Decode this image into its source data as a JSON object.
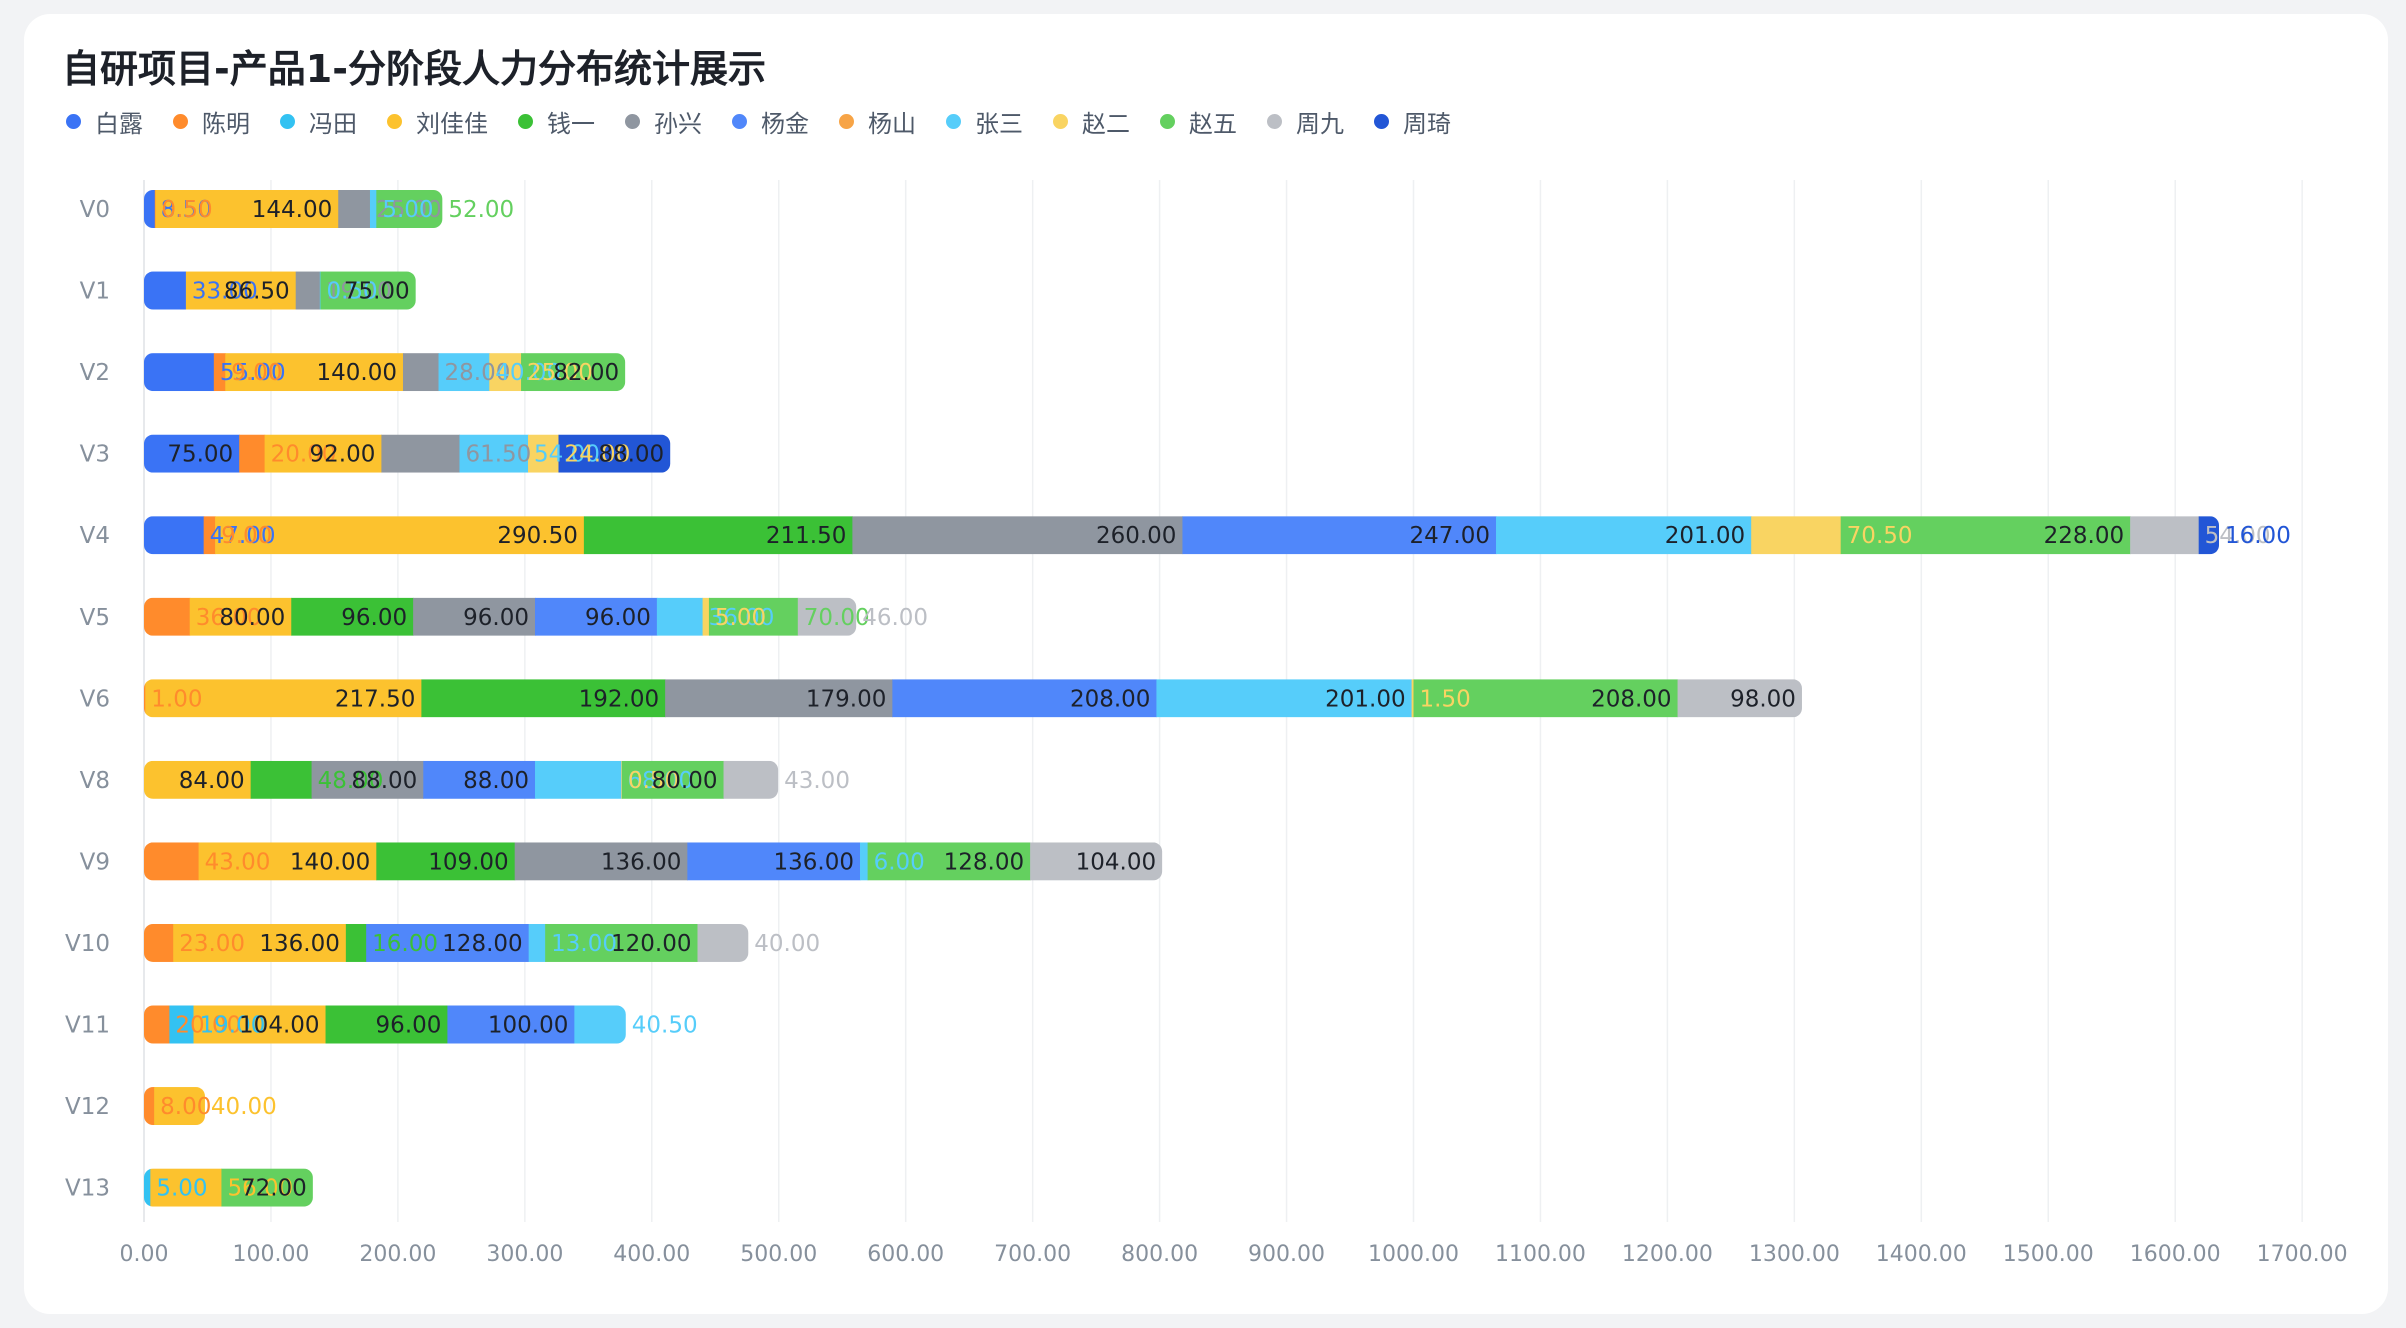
{
  "chart_data": {
    "type": "bar",
    "orientation": "horizontal",
    "stacked": true,
    "title": "自研项目-产品1-分阶段人力分布统计展示",
    "categories": [
      "V0",
      "V1",
      "V2",
      "V3",
      "V4",
      "V5",
      "V6",
      "V8",
      "V9",
      "V10",
      "V11",
      "V12",
      "V13"
    ],
    "xlim": [
      0,
      1700
    ],
    "xticks": [
      "0.00",
      "100.00",
      "200.00",
      "300.00",
      "400.00",
      "500.00",
      "600.00",
      "700.00",
      "800.00",
      "900.00",
      "1000.00",
      "1100.00",
      "1200.00",
      "1300.00",
      "1400.00",
      "1500.00",
      "1600.00",
      "1700.00"
    ],
    "grid": true,
    "legend_position": "top-left",
    "series": [
      {
        "name": "白露",
        "color": "#3a73f5",
        "values": [
          8.5,
          33,
          55,
          75,
          47,
          0,
          0,
          0,
          0,
          0,
          0,
          0,
          0
        ],
        "labels": [
          "8.50",
          "33.00",
          "55.00",
          "75.00",
          "47.00",
          "",
          "",
          "",
          "",
          "",
          "",
          "",
          ""
        ]
      },
      {
        "name": "陈明",
        "color": "#ff8b2c",
        "values": [
          0.5,
          0,
          9,
          20,
          9,
          36,
          1,
          0,
          43,
          23,
          20,
          8,
          0
        ],
        "labels": [
          "0.50",
          "",
          "9.00",
          "20.00",
          "9.00",
          "36.00",
          "1.00",
          "",
          "43.00",
          "23.00",
          "20.00",
          "8.00",
          ""
        ]
      },
      {
        "name": "冯田",
        "color": "#33c2f2",
        "values": [
          0,
          0,
          0,
          0,
          0,
          0,
          0,
          0,
          0,
          0,
          19,
          0,
          5
        ],
        "labels": [
          "",
          "",
          "",
          "",
          "",
          "",
          "",
          "",
          "",
          "",
          "19.00",
          "",
          "5.00"
        ]
      },
      {
        "name": "刘佳佳",
        "color": "#fcc22e",
        "values": [
          144,
          86.5,
          140,
          92,
          290.5,
          80,
          217.5,
          84,
          140,
          136,
          104,
          40,
          56
        ],
        "labels": [
          "144.00",
          "86.50",
          "140.00",
          "92.00",
          "290.50",
          "80.00",
          "217.50",
          "84.00",
          "140.00",
          "136.00",
          "104.00",
          "40.00",
          "56.00"
        ]
      },
      {
        "name": "钱一",
        "color": "#3bc136",
        "values": [
          0,
          0,
          0,
          0,
          211.5,
          96,
          192,
          48,
          109,
          16,
          96,
          0,
          0
        ],
        "labels": [
          "",
          "",
          "",
          "",
          "211.50",
          "96.00",
          "192.00",
          "48.00",
          "109.00",
          "16.00",
          "96.00",
          "",
          ""
        ]
      },
      {
        "name": "孙兴",
        "color": "#8f96a0",
        "values": [
          25,
          19,
          28,
          61.5,
          260,
          96,
          179,
          88,
          136,
          0,
          0,
          0,
          0
        ],
        "labels": [
          "25.00",
          "19.00",
          "28.00",
          "61.50",
          "260.00",
          "96.00",
          "179.00",
          "88.00",
          "136.00",
          "",
          "",
          "",
          ""
        ]
      },
      {
        "name": "杨金",
        "color": "#5087fa",
        "values": [
          0,
          0,
          0,
          0,
          247,
          96,
          208,
          88,
          136,
          128,
          100,
          0,
          0
        ],
        "labels": [
          "",
          "",
          "",
          "",
          "247.00",
          "96.00",
          "208.00",
          "88.00",
          "136.00",
          "128.00",
          "100.00",
          "",
          ""
        ]
      },
      {
        "name": "杨山",
        "color": "#f7a446",
        "values": [
          0,
          0,
          0,
          0,
          0,
          0,
          0,
          0,
          0,
          0,
          0,
          0,
          0
        ],
        "labels": [
          "",
          "",
          "",
          "",
          "",
          "",
          "",
          "",
          "",
          "",
          "",
          "",
          ""
        ]
      },
      {
        "name": "张三",
        "color": "#56cdfa",
        "values": [
          5,
          0.5,
          40,
          54,
          201,
          36,
          201,
          68,
          6,
          13,
          40.5,
          0,
          0
        ],
        "labels": [
          "5.00",
          "0.50",
          "40.00",
          "54.00",
          "201.00",
          "36.00",
          "201.00",
          "68.00",
          "6.00",
          "13.00",
          "40.50",
          "",
          ""
        ]
      },
      {
        "name": "赵二",
        "color": "#f9d462",
        "values": [
          0,
          0,
          25,
          24,
          70.5,
          5,
          1.5,
          0.5,
          0,
          0,
          0,
          0,
          0
        ],
        "labels": [
          "",
          "",
          "25.00",
          "24.00",
          "70.50",
          "5.00",
          "1.50",
          "0.50",
          "",
          "",
          "",
          "",
          ""
        ]
      },
      {
        "name": "赵五",
        "color": "#64d05f",
        "values": [
          52,
          75,
          82,
          0,
          228,
          70,
          208,
          80,
          128,
          120,
          0,
          0,
          72
        ],
        "labels": [
          "52.00",
          "75.00",
          "82.00",
          "",
          "228.00",
          "70.00",
          "208.00",
          "80.00",
          "128.00",
          "120.00",
          "",
          "",
          "72.00"
        ]
      },
      {
        "name": "周九",
        "color": "#bcbfc5",
        "values": [
          0,
          0,
          0,
          0,
          54,
          46,
          98,
          43,
          104,
          40,
          0,
          0,
          0
        ],
        "labels": [
          "",
          "",
          "",
          "",
          "54.00",
          "46.00",
          "98.00",
          "43.00",
          "104.00",
          "40.00",
          "",
          "",
          ""
        ]
      },
      {
        "name": "周琦",
        "color": "#2256d6",
        "values": [
          0,
          0,
          0,
          88,
          16,
          0,
          0,
          0,
          0,
          0,
          0,
          0,
          0
        ],
        "labels": [
          "",
          "",
          "",
          "88.00",
          "16.00",
          "",
          "",
          "",
          "",
          "",
          "",
          "",
          ""
        ]
      }
    ]
  }
}
